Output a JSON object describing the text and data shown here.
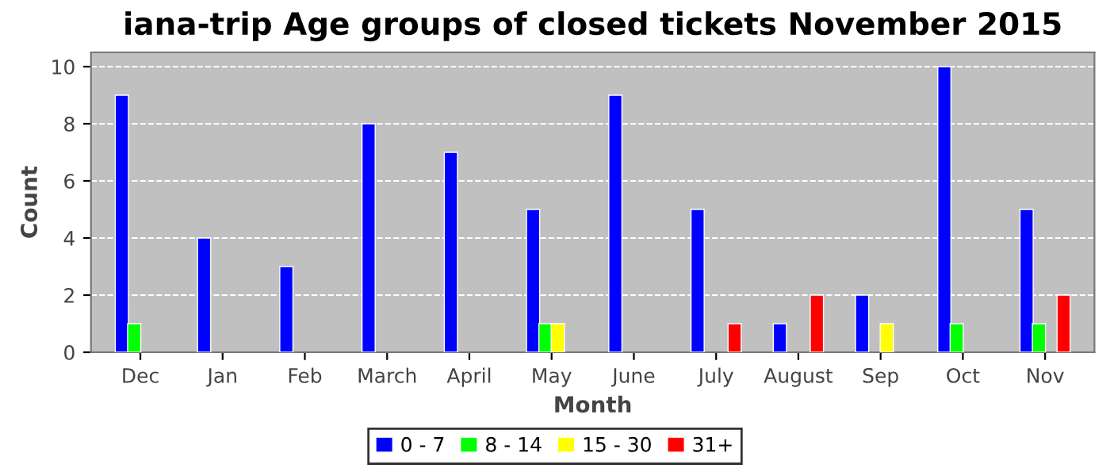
{
  "chart_data": {
    "type": "bar",
    "title": "iana-trip Age groups of closed tickets November 2015",
    "xlabel": "Month",
    "ylabel": "Count",
    "categories": [
      "Dec",
      "Jan",
      "Feb",
      "March",
      "April",
      "May",
      "June",
      "July",
      "August",
      "Sep",
      "Oct",
      "Nov"
    ],
    "series": [
      {
        "name": "0 - 7",
        "color": "#0000ff",
        "values": [
          9,
          4,
          3,
          8,
          7,
          5,
          9,
          5,
          1,
          2,
          10,
          5
        ]
      },
      {
        "name": "8 - 14",
        "color": "#00ff00",
        "values": [
          1,
          null,
          null,
          null,
          null,
          1,
          null,
          null,
          null,
          null,
          1,
          1
        ]
      },
      {
        "name": "15 - 30",
        "color": "#ffff00",
        "values": [
          null,
          null,
          null,
          null,
          null,
          1,
          null,
          null,
          null,
          1,
          null,
          null
        ]
      },
      {
        "name": "31+",
        "color": "#ff0000",
        "values": [
          null,
          null,
          null,
          null,
          null,
          null,
          null,
          1,
          2,
          null,
          null,
          2
        ]
      }
    ],
    "ylim": [
      0,
      10.5
    ],
    "yticks": [
      0,
      2,
      4,
      6,
      8,
      10
    ],
    "grid": "y",
    "legend": "bottom"
  }
}
